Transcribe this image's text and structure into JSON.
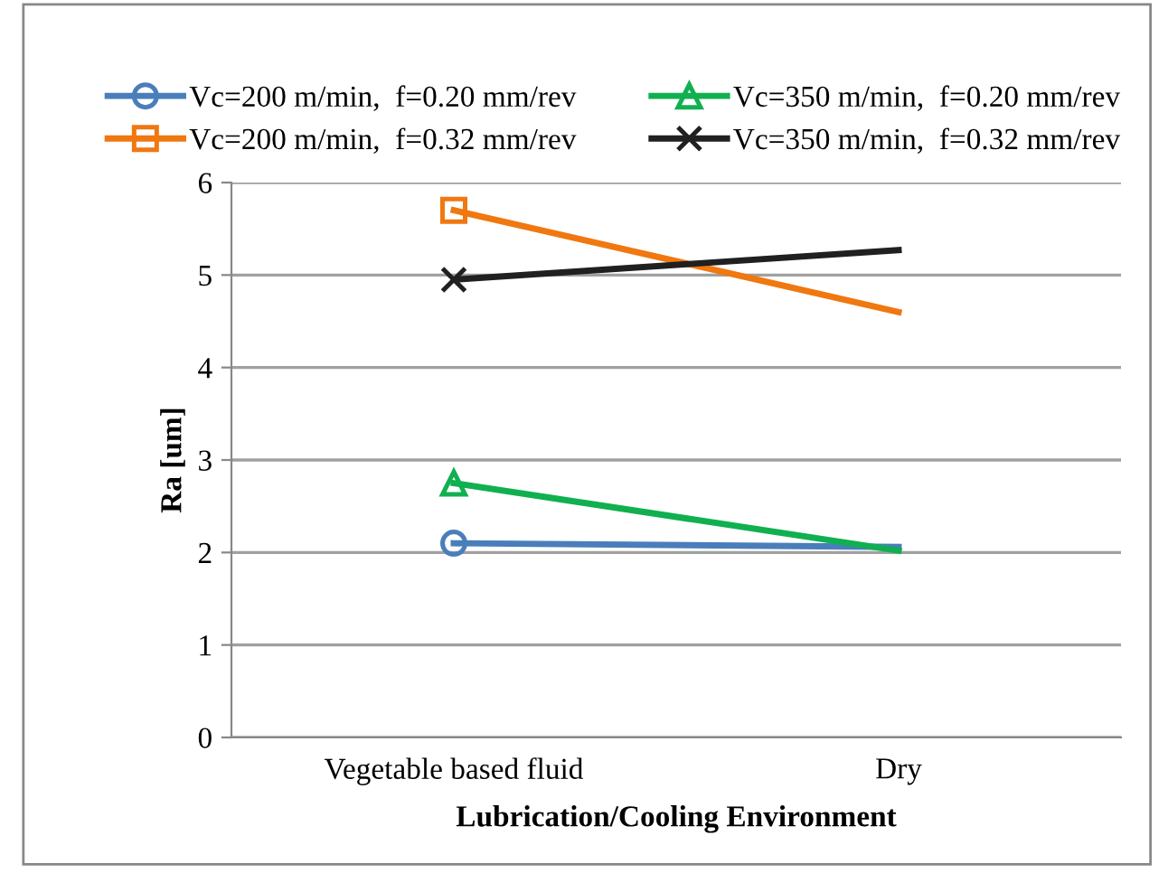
{
  "chart_data": {
    "type": "line",
    "xlabel": "Lubrication/Cooling Environment",
    "ylabel": "Ra [um]",
    "categories": [
      "Vegetable based fluid",
      "Dry"
    ],
    "series": [
      {
        "name": "Vc=200 m/min,  f=0.20 mm/rev",
        "color": "#4a7ebb",
        "marker": "circle",
        "values": [
          2.1,
          2.06
        ]
      },
      {
        "name": "Vc=200 m/min,  f=0.32 mm/rev",
        "color": "#f07810",
        "marker": "square",
        "values": [
          5.7,
          4.6
        ]
      },
      {
        "name": "Vc=350 m/min,  f=0.20 mm/rev",
        "color": "#10b050",
        "marker": "triangle",
        "values": [
          2.75,
          2.02
        ]
      },
      {
        "name": "Vc=350 m/min,  f=0.32 mm/rev",
        "color": "#202020",
        "marker": "cross",
        "values": [
          4.95,
          5.27
        ]
      }
    ],
    "ylim": [
      0,
      6
    ],
    "yticks": [
      0,
      1,
      2,
      3,
      4,
      5,
      6
    ],
    "grid": "y",
    "legend": "top"
  }
}
